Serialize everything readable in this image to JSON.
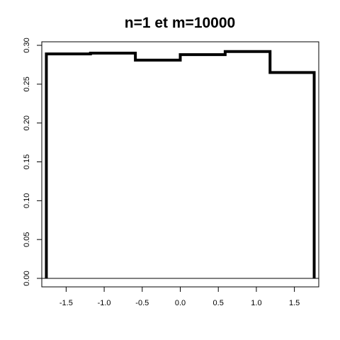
{
  "chart_data": {
    "type": "histogram",
    "title": "n=1 et m=10000",
    "xlabel": "",
    "ylabel": "",
    "xlim": [
      -1.82,
      1.82
    ],
    "ylim": [
      0,
      0.3
    ],
    "x_ticks": [
      -1.5,
      -1.0,
      -0.5,
      0.0,
      0.5,
      1.0,
      1.5
    ],
    "x_tick_labels": [
      "-1.5",
      "-1.0",
      "-0.5",
      "0.0",
      "0.5",
      "1.0",
      "1.5"
    ],
    "y_ticks": [
      0.0,
      0.05,
      0.1,
      0.15,
      0.2,
      0.25,
      0.3
    ],
    "y_tick_labels": [
      "0.00",
      "0.05",
      "0.10",
      "0.15",
      "0.20",
      "0.25",
      "0.30"
    ],
    "bin_edges": [
      -1.76,
      -1.18,
      -0.59,
      0.0,
      0.59,
      1.18,
      1.76
    ],
    "values": [
      0.289,
      0.29,
      0.281,
      0.288,
      0.292,
      0.265
    ],
    "grid": false,
    "legend": "none",
    "line_color": "#000000"
  }
}
